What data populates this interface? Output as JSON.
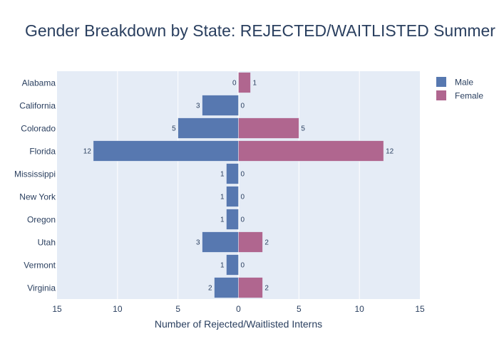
{
  "chart_data": {
    "type": "bar",
    "orientation": "horizontal",
    "layout": "butterfly",
    "title": "Gender Breakdown by State: REJECTED/WAITLISTED Summer Interns",
    "xlabel": "Number of Rejected/Waitlisted Interns",
    "ylabel": "",
    "categories": [
      "Alabama",
      "California",
      "Colorado",
      "Florida",
      "Mississippi",
      "New York",
      "Oregon",
      "Utah",
      "Vermont",
      "Virginia"
    ],
    "series": [
      {
        "name": "Male",
        "values": [
          0,
          3,
          5,
          12,
          1,
          1,
          1,
          3,
          1,
          2
        ],
        "side": "left",
        "color": "#5778b0"
      },
      {
        "name": "Female",
        "values": [
          1,
          0,
          5,
          12,
          0,
          0,
          0,
          2,
          0,
          2
        ],
        "side": "right",
        "color": "#b0668f"
      }
    ],
    "xlim": [
      -15,
      15
    ],
    "x_ticks": [
      -15,
      -10,
      -5,
      0,
      5,
      10,
      15
    ],
    "x_tick_labels": [
      "15",
      "10",
      "5",
      "0",
      "5",
      "10",
      "15"
    ],
    "grid": true,
    "legend_position": "top-right",
    "colors": {
      "plot_background": "#e5ecf6",
      "grid": "#ffffff",
      "text": "#2a3f5f",
      "male": "#5778b0",
      "female": "#b0668f"
    }
  }
}
